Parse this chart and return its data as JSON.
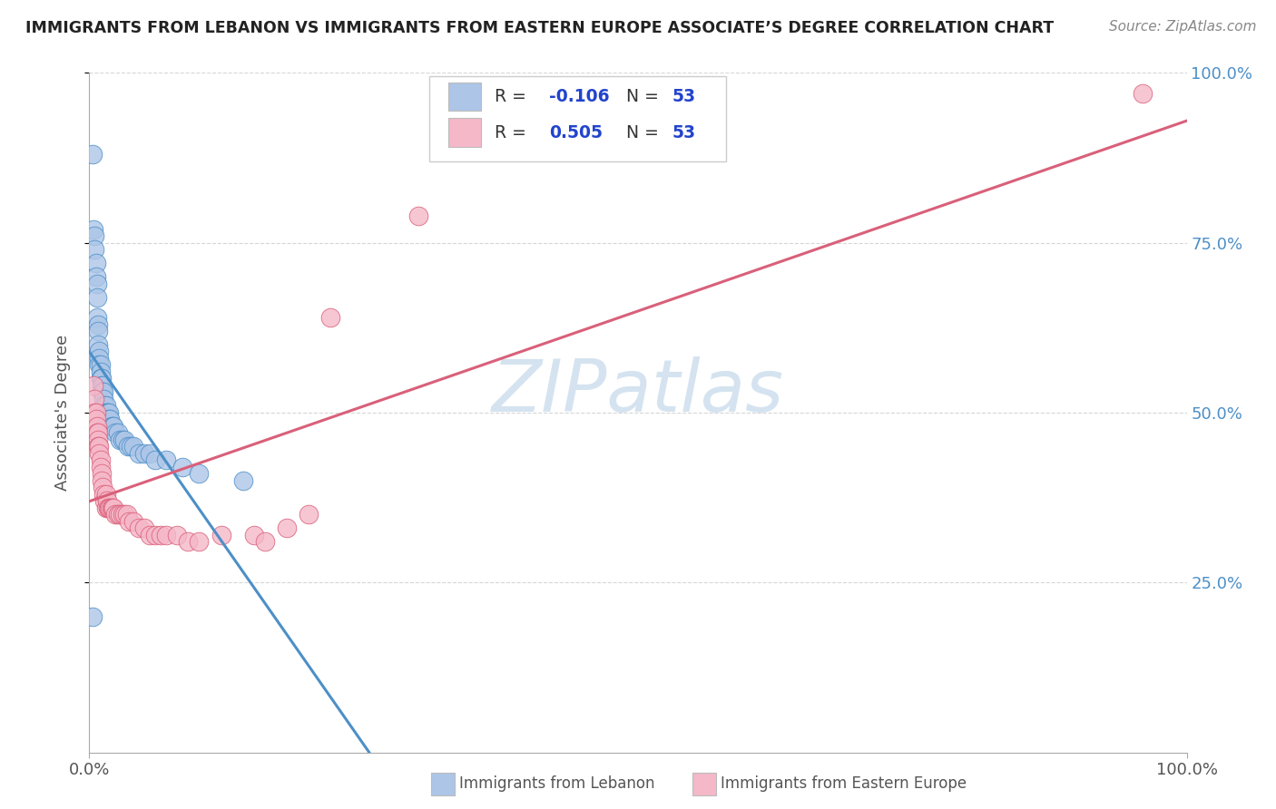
{
  "title": "IMMIGRANTS FROM LEBANON VS IMMIGRANTS FROM EASTERN EUROPE ASSOCIATE’S DEGREE CORRELATION CHART",
  "source": "Source: ZipAtlas.com",
  "ylabel": "Associate's Degree",
  "legend_label_blue": "Immigrants from Lebanon",
  "legend_label_pink": "Immigrants from Eastern Europe",
  "R_blue": -0.106,
  "N_blue": 53,
  "R_pink": 0.505,
  "N_pink": 53,
  "color_blue": "#adc6e8",
  "color_pink": "#f5b8c8",
  "line_color_blue": "#4d8fc7",
  "line_color_pink": "#d9607a",
  "background_color": "#ffffff",
  "grid_color": "#cccccc",
  "title_color": "#222222",
  "axis_label_color": "#555555",
  "right_tick_color": "#4d8fc7",
  "legend_R_color": "#2244cc",
  "watermark_color": "#d5e3f0",
  "xlim": [
    0,
    1.0
  ],
  "ylim": [
    0,
    1.0
  ],
  "right_yticklabels": [
    "25.0%",
    "50.0%",
    "75.0%",
    "100.0%"
  ],
  "blue_x": [
    0.003,
    0.004,
    0.005,
    0.005,
    0.006,
    0.006,
    0.007,
    0.007,
    0.007,
    0.008,
    0.008,
    0.008,
    0.009,
    0.009,
    0.009,
    0.01,
    0.01,
    0.01,
    0.011,
    0.011,
    0.011,
    0.012,
    0.012,
    0.013,
    0.013,
    0.014,
    0.015,
    0.015,
    0.016,
    0.017,
    0.018,
    0.018,
    0.019,
    0.02,
    0.021,
    0.022,
    0.024,
    0.026,
    0.028,
    0.03,
    0.032,
    0.035,
    0.038,
    0.04,
    0.045,
    0.05,
    0.055,
    0.06,
    0.07,
    0.085,
    0.1,
    0.14,
    0.003
  ],
  "blue_y": [
    0.88,
    0.77,
    0.76,
    0.74,
    0.72,
    0.7,
    0.69,
    0.67,
    0.64,
    0.63,
    0.62,
    0.6,
    0.59,
    0.58,
    0.57,
    0.57,
    0.56,
    0.55,
    0.55,
    0.54,
    0.53,
    0.54,
    0.53,
    0.53,
    0.52,
    0.51,
    0.51,
    0.5,
    0.5,
    0.5,
    0.5,
    0.49,
    0.49,
    0.48,
    0.48,
    0.48,
    0.47,
    0.47,
    0.46,
    0.46,
    0.46,
    0.45,
    0.45,
    0.45,
    0.44,
    0.44,
    0.44,
    0.43,
    0.43,
    0.42,
    0.41,
    0.4,
    0.2
  ],
  "pink_x": [
    0.004,
    0.005,
    0.005,
    0.006,
    0.006,
    0.007,
    0.007,
    0.008,
    0.008,
    0.008,
    0.009,
    0.009,
    0.01,
    0.01,
    0.011,
    0.011,
    0.012,
    0.013,
    0.014,
    0.015,
    0.015,
    0.016,
    0.017,
    0.018,
    0.019,
    0.02,
    0.021,
    0.022,
    0.024,
    0.026,
    0.028,
    0.03,
    0.032,
    0.034,
    0.036,
    0.04,
    0.045,
    0.05,
    0.055,
    0.06,
    0.065,
    0.07,
    0.08,
    0.09,
    0.1,
    0.12,
    0.15,
    0.16,
    0.18,
    0.2,
    0.22,
    0.3,
    0.96
  ],
  "pink_y": [
    0.54,
    0.52,
    0.5,
    0.5,
    0.49,
    0.48,
    0.47,
    0.47,
    0.46,
    0.45,
    0.45,
    0.44,
    0.43,
    0.42,
    0.41,
    0.4,
    0.39,
    0.38,
    0.37,
    0.36,
    0.38,
    0.37,
    0.36,
    0.36,
    0.36,
    0.36,
    0.36,
    0.36,
    0.35,
    0.35,
    0.35,
    0.35,
    0.35,
    0.35,
    0.34,
    0.34,
    0.33,
    0.33,
    0.32,
    0.32,
    0.32,
    0.32,
    0.32,
    0.31,
    0.31,
    0.32,
    0.32,
    0.31,
    0.33,
    0.35,
    0.64,
    0.79,
    0.97
  ],
  "figsize": [
    14.06,
    8.92
  ],
  "dpi": 100
}
